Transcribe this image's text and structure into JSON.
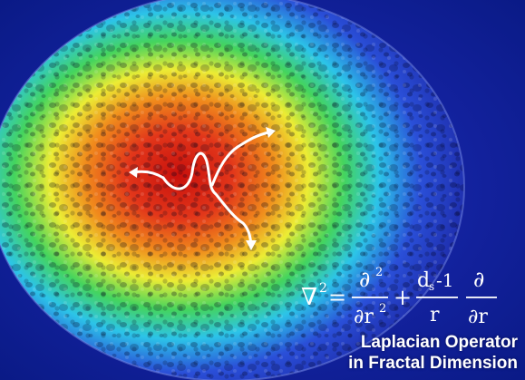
{
  "caption": {
    "line1": "Laplacian Operator",
    "line2": "in Fractal Dimension"
  },
  "equation": {
    "lhs_symbol": "∇",
    "lhs_power": "2",
    "equals": "=",
    "frac1_num": "∂",
    "frac1_num_power": "2",
    "frac1_den": "∂r",
    "frac1_den_power": "2",
    "plus": "+",
    "frac2_num_base": "d",
    "frac2_num_sub": "s",
    "frac2_num_rest": "-1",
    "frac2_den": "r",
    "frac3_num": "∂",
    "frac3_den": "∂r"
  },
  "colors": {
    "background": "#13229f",
    "hot_center": "#c8100c",
    "ring_orange": "#f08a1c",
    "ring_yellow": "#ecec34",
    "ring_green": "#44d45e",
    "ring_cyan": "#2cc4e8",
    "ring_blue": "#2a4fd8",
    "arrows": "#ffffff"
  }
}
